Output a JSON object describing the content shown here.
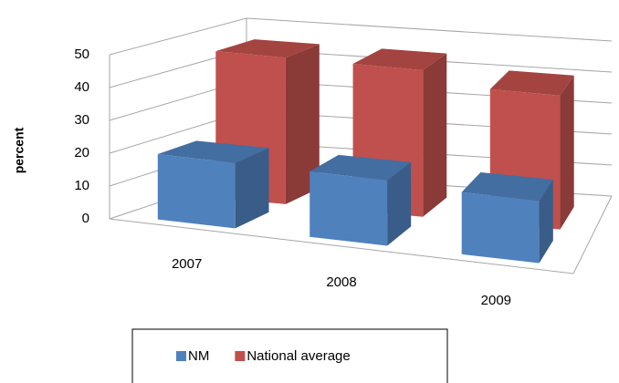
{
  "chart_data": {
    "type": "bar3d",
    "y_label": "percent",
    "categories": [
      "2007",
      "2008",
      "2009"
    ],
    "series": [
      {
        "name": "NM",
        "color": "#4f81bd",
        "values": [
          20,
          20,
          19
        ]
      },
      {
        "name": "National average",
        "color": "#c0504d",
        "values": [
          46,
          46,
          42
        ]
      }
    ],
    "ylim": [
      0,
      50
    ],
    "yticks": [
      0,
      10,
      20,
      30,
      40,
      50
    ],
    "grid": true,
    "legend": "bottom"
  }
}
